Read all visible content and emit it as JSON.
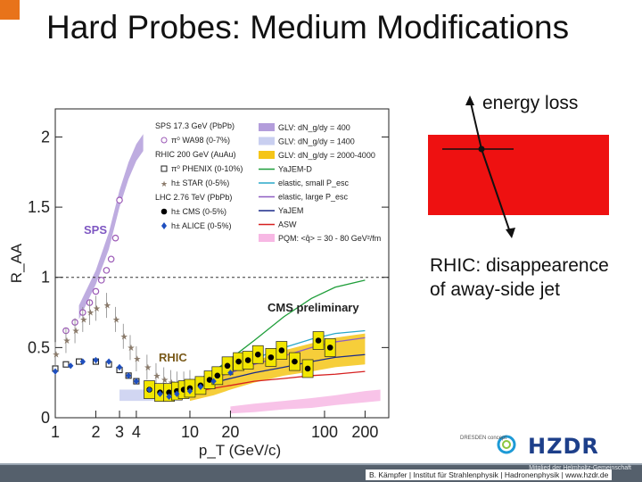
{
  "slide": {
    "title": "Hard Probes: Medium Modifications",
    "footer": "B. Kämpfer | Institut für Strahlenphysik | Hadronenphysik | www.hzdr.de",
    "footer_institution": "Mitglied der Helmholtz-Gemeinschaft",
    "logo_dresden": "DRESDEN concept",
    "logo_hzdr": "HZDR",
    "accent_color": "#e8731a"
  },
  "annotations": {
    "energy_loss": "energy loss",
    "rhic_line1": "RHIC: disappearence",
    "rhic_line2": "of away-side jet",
    "block_color": "#ee1111"
  },
  "chart_data": {
    "type": "scatter",
    "xscale": "log",
    "xlim": [
      1,
      300
    ],
    "ylim": [
      0,
      2.2
    ],
    "xlabel": "p_T (GeV/c)",
    "ylabel": "R_AA",
    "xticks": [
      "1",
      "2",
      "3",
      "4",
      "10",
      "20",
      "100",
      "200"
    ],
    "yticks": [
      "0",
      "0.5",
      "1",
      "1.5",
      "2"
    ],
    "reference_line": 1,
    "text_labels": {
      "sps": "SPS",
      "rhic": "RHIC",
      "cms": "CMS preliminary"
    },
    "legend_left": [
      {
        "label": "SPS 17.3 GeV (PbPb)",
        "kind": "header"
      },
      {
        "label": "π⁰ WA98 (0-7%)",
        "kind": "marker",
        "marker": "open-circle",
        "color": "#9b59b6"
      },
      {
        "label": "RHIC 200 GeV (AuAu)",
        "kind": "header"
      },
      {
        "label": "π⁰ PHENIX (0-10%)",
        "kind": "marker",
        "marker": "open-square",
        "color": "#222222"
      },
      {
        "label": "h± STAR (0-5%)",
        "kind": "marker",
        "marker": "star",
        "color": "#8a7a6a"
      },
      {
        "label": "LHC 2.76 TeV (PbPb)",
        "kind": "header"
      },
      {
        "label": "h± CMS (0-5%)",
        "kind": "marker",
        "marker": "filled-circle",
        "color": "#000000"
      },
      {
        "label": "h± ALICE (0-5%)",
        "kind": "marker",
        "marker": "filled-diamond",
        "color": "#1f4fbf"
      }
    ],
    "legend_right": [
      {
        "label": "GLV: dN_g/dy = 400",
        "color": "#b39ddb",
        "kind": "band"
      },
      {
        "label": "GLV: dN_g/dy = 1400",
        "color": "#c9cff0",
        "kind": "band"
      },
      {
        "label": "GLV: dN_g/dy = 2000-4000",
        "color": "#f5c518",
        "kind": "band"
      },
      {
        "label": "YaJEM-D",
        "color": "#1f9e3a",
        "kind": "line"
      },
      {
        "label": "elastic, small P_esc",
        "color": "#2aa8c8",
        "kind": "line"
      },
      {
        "label": "elastic, large P_esc",
        "color": "#8e5ec2",
        "kind": "line"
      },
      {
        "label": "YaJEM",
        "color": "#1a2a8a",
        "kind": "line"
      },
      {
        "label": "ASW",
        "color": "#d62020",
        "kind": "line"
      },
      {
        "label": "PQM: <q̂> = 30 - 80 GeV²/fm",
        "color": "#f7b8e4",
        "kind": "band"
      }
    ],
    "series": [
      {
        "name": "π⁰ WA98 (0-7%)",
        "marker": "open-circle",
        "color": "#9b59b6",
        "x": [
          1.2,
          1.4,
          1.6,
          1.8,
          2.0,
          2.2,
          2.4,
          2.6,
          2.8,
          3.0
        ],
        "y": [
          0.62,
          0.68,
          0.75,
          0.82,
          0.9,
          0.98,
          1.05,
          1.13,
          1.28,
          1.55
        ]
      },
      {
        "name": "π⁰ PHENIX (0-10%)",
        "marker": "open-square",
        "color": "#222222",
        "x": [
          1.0,
          1.2,
          1.5,
          2.0,
          2.5,
          3.0,
          3.5,
          4.0,
          5.0,
          6.0,
          7.0,
          8.0,
          9.0,
          10.0,
          12.0,
          14.0
        ],
        "y": [
          0.35,
          0.38,
          0.4,
          0.4,
          0.38,
          0.34,
          0.3,
          0.26,
          0.2,
          0.2,
          0.19,
          0.21,
          0.21,
          0.22,
          0.21,
          0.25
        ]
      },
      {
        "name": "h± STAR (0-5%)",
        "marker": "star",
        "color": "#8a7a6a",
        "x": [
          1.0,
          1.2,
          1.4,
          1.6,
          1.8,
          2.0,
          2.4,
          2.8,
          3.2,
          3.6,
          4.0,
          4.8,
          5.6,
          6.4,
          7.2,
          8.0,
          9.0,
          10.0
        ],
        "y": [
          0.45,
          0.55,
          0.62,
          0.7,
          0.75,
          0.78,
          0.8,
          0.7,
          0.58,
          0.5,
          0.42,
          0.36,
          0.3,
          0.27,
          0.25,
          0.24,
          0.24,
          0.25
        ]
      },
      {
        "name": "h± CMS (0-5%)",
        "marker": "filled-circle",
        "color": "#000000",
        "x": [
          5.0,
          6.0,
          7.0,
          8.0,
          9.0,
          10.0,
          12.0,
          14.0,
          16.0,
          19.0,
          23.0,
          27.0,
          32.0,
          40.0,
          48.0,
          60.0,
          75.0,
          90.0,
          110.0
        ],
        "y": [
          0.2,
          0.18,
          0.18,
          0.19,
          0.2,
          0.21,
          0.23,
          0.27,
          0.3,
          0.37,
          0.4,
          0.41,
          0.45,
          0.43,
          0.48,
          0.4,
          0.35,
          0.55,
          0.5
        ]
      },
      {
        "name": "h± ALICE (0-5%)",
        "marker": "filled-diamond",
        "color": "#1f4fbf",
        "x": [
          1.0,
          1.3,
          1.6,
          2.0,
          2.5,
          3.0,
          3.5,
          4.0,
          5.0,
          6.0,
          7.0,
          8.0,
          10.0,
          12.0,
          15.0,
          20.0
        ],
        "y": [
          0.33,
          0.37,
          0.4,
          0.41,
          0.4,
          0.36,
          0.3,
          0.26,
          0.2,
          0.17,
          0.15,
          0.17,
          0.19,
          0.22,
          0.26,
          0.32
        ]
      }
    ],
    "model_curves": [
      {
        "name": "YaJEM-D",
        "color": "#1f9e3a",
        "x": [
          7,
          10,
          15,
          20,
          30,
          50,
          80,
          120,
          200
        ],
        "y": [
          0.2,
          0.24,
          0.33,
          0.42,
          0.55,
          0.72,
          0.85,
          0.93,
          0.98
        ]
      },
      {
        "name": "elastic, small P_esc",
        "color": "#2aa8c8",
        "x": [
          7,
          10,
          15,
          20,
          30,
          50,
          80,
          120,
          200
        ],
        "y": [
          0.22,
          0.25,
          0.3,
          0.35,
          0.42,
          0.5,
          0.56,
          0.6,
          0.62
        ]
      },
      {
        "name": "elastic, large P_esc",
        "color": "#8e5ec2",
        "x": [
          7,
          10,
          15,
          20,
          30,
          50,
          80,
          120,
          200
        ],
        "y": [
          0.21,
          0.24,
          0.28,
          0.32,
          0.38,
          0.44,
          0.5,
          0.54,
          0.57
        ]
      },
      {
        "name": "YaJEM",
        "color": "#1a2a8a",
        "x": [
          7,
          10,
          15,
          20,
          30,
          50,
          80,
          120,
          200
        ],
        "y": [
          0.18,
          0.21,
          0.25,
          0.28,
          0.32,
          0.36,
          0.4,
          0.43,
          0.45
        ]
      },
      {
        "name": "ASW",
        "color": "#d62020",
        "x": [
          7,
          10,
          15,
          20,
          30,
          50,
          80,
          120,
          200
        ],
        "y": [
          0.16,
          0.18,
          0.21,
          0.23,
          0.26,
          0.28,
          0.3,
          0.31,
          0.33
        ]
      }
    ],
    "model_bands": [
      {
        "name": "GLV: dN_g/dy = 400",
        "color": "#b39ddb",
        "x": [
          1.5,
          2.0,
          2.5,
          3.0,
          3.5,
          4.0,
          4.5
        ],
        "lo": [
          0.7,
          0.95,
          1.2,
          1.5,
          1.7,
          1.83,
          1.9
        ],
        "hi": [
          0.8,
          1.05,
          1.32,
          1.62,
          1.82,
          1.95,
          2.02
        ]
      },
      {
        "name": "GLV: dN_g/dy = 1400",
        "color": "#c9cff0",
        "x": [
          3,
          5,
          10,
          15,
          20
        ],
        "lo": [
          0.12,
          0.12,
          0.15,
          0.2,
          0.24
        ],
        "hi": [
          0.2,
          0.2,
          0.24,
          0.3,
          0.35
        ]
      },
      {
        "name": "GLV: dN_g/dy = 2000-4000",
        "color": "#f5c518",
        "x": [
          10,
          15,
          20,
          30,
          50,
          80,
          120,
          200
        ],
        "lo": [
          0.12,
          0.16,
          0.2,
          0.25,
          0.3,
          0.33,
          0.36,
          0.38
        ],
        "hi": [
          0.22,
          0.28,
          0.33,
          0.4,
          0.48,
          0.53,
          0.57,
          0.6
        ]
      },
      {
        "name": "PQM: <q̂> = 30 - 80 GeV²/fm",
        "color": "#f7b8e4",
        "x": [
          20,
          30,
          50,
          80,
          120,
          200,
          260
        ],
        "lo": [
          0.03,
          0.04,
          0.06,
          0.07,
          0.09,
          0.11,
          0.12
        ],
        "hi": [
          0.08,
          0.1,
          0.12,
          0.14,
          0.16,
          0.19,
          0.2
        ]
      }
    ]
  }
}
